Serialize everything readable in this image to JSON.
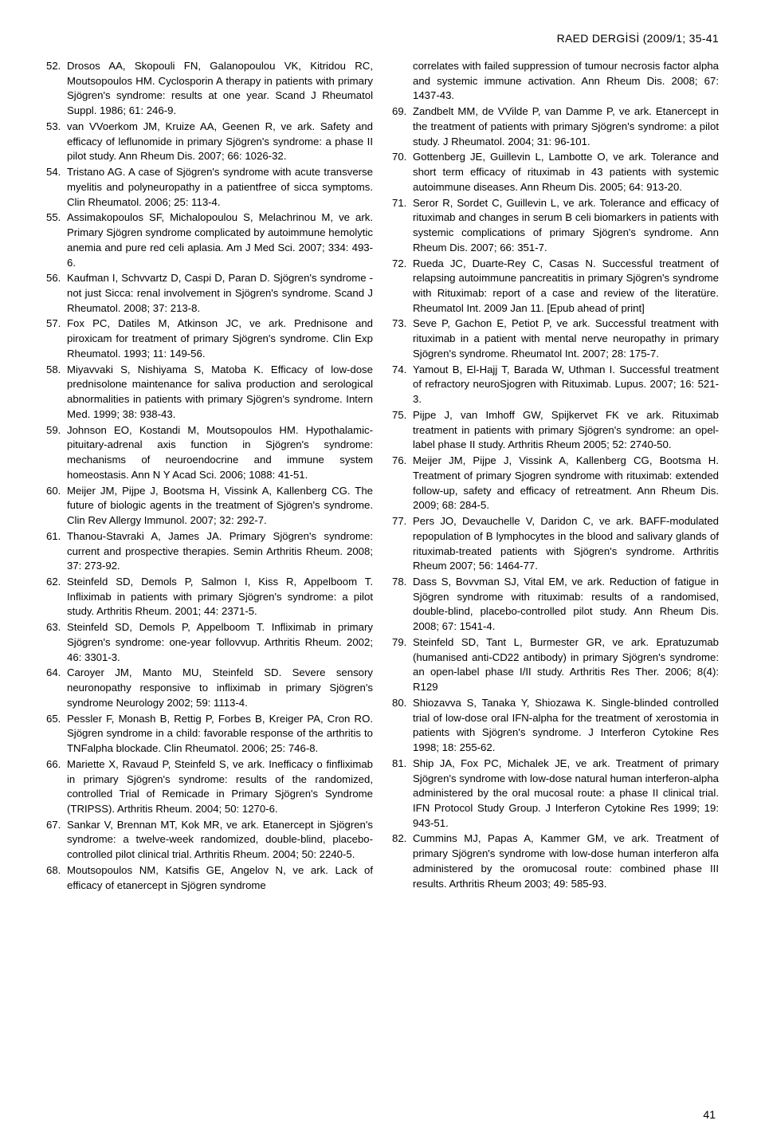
{
  "header": "RAED DERGİSİ (2009/1; 35-41",
  "page_number": "41",
  "left_refs": [
    {
      "num": "52.",
      "text": "Drosos AA, Skopouli FN, Galanopoulou VK, Kitridou RC, Moutsopoulos HM. Cyclosporin A therapy in patients with primary Sjögren's syndrome: results at one year. Scand J Rheumatol Suppl. 1986; 61: 246-9."
    },
    {
      "num": "53.",
      "text": "van VVoerkom JM, Kruize AA, Geenen R, ve ark. Safety and efficacy of leflunomide in primary Sjögren's syndrome: a phase II pilot study. Ann Rheum Dis. 2007; 66: 1026-32."
    },
    {
      "num": "54.",
      "text": "Tristano AG. A case of Sjögren's syndrome with acute transverse myelitis and polyneuropathy in a patientfree of sicca symptoms. Clin Rheumatol. 2006; 25: 113-4."
    },
    {
      "num": "55.",
      "text": "Assimakopoulos SF, Michalopoulou S, Melachrinou M, ve ark. Primary Sjögren syndrome complicated by autoimmune hemolytic anemia and pure red celi aplasia. Am J Med Sci. 2007; 334: 493-6."
    },
    {
      "num": "56.",
      "text": "Kaufman I, Schvvartz D, Caspi D, Paran D. Sjögren's syndrome - not just Sicca: renal involvement in Sjögren's syndrome. Scand J Rheumatol. 2008; 37: 213-8."
    },
    {
      "num": "57.",
      "text": "Fox PC, Datiles M, Atkinson JC, ve ark. Prednisone and piroxicam for treatment of primary Sjögren's syndrome. Clin Exp Rheumatol. 1993; 11: 149-56."
    },
    {
      "num": "58.",
      "text": "Miyavvaki S, Nishiyama S, Matoba K. Efficacy of low-dose prednisolone maintenance for saliva production and serological abnormalities in patients with primary Sjögren's syndrome. Intern Med. 1999; 38: 938-43."
    },
    {
      "num": "59.",
      "text": "Johnson EO, Kostandi M, Moutsopoulos HM. Hypothalamic-pituitary-adrenal axis function in Sjögren's syndrome: mechanisms of neuroendocrine and immune system homeostasis. Ann N Y Acad Sci. 2006; 1088: 41-51."
    },
    {
      "num": "60.",
      "text": "Meijer JM, Pijpe J, Bootsma H, Vissink A, Kallenberg CG. The future of biologic agents in the treatment of Sjögren's syndrome. Clin Rev Allergy Immunol. 2007; 32: 292-7."
    },
    {
      "num": "61.",
      "text": "Thanou-Stavraki A, James JA. Primary Sjögren's syndrome: current and prospective therapies. Semin Arthritis Rheum. 2008; 37: 273-92."
    },
    {
      "num": "62.",
      "text": "Steinfeld SD, Demols P, Salmon I, Kiss R, Appelboom T. Infliximab in patients with primary Sjögren's syndrome: a pilot study. Arthritis Rheum. 2001; 44: 2371-5."
    },
    {
      "num": "63.",
      "text": "Steinfeld SD, Demols P, Appelboom T. Infliximab in primary Sjögren's syndrome: one-year follovvup. Arthritis Rheum. 2002; 46: 3301-3."
    },
    {
      "num": "64.",
      "text": "Caroyer JM, Manto MU, Steinfeld SD. Severe sensory neuronopathy responsive to infliximab in primary Sjögren's syndrome Neurology 2002; 59: 1113-4."
    },
    {
      "num": "65.",
      "text": "Pessler F, Monash B, Rettig P, Forbes B, Kreiger PA, Cron RO. Sjögren syndrome in a child: favorable response of the arthritis to TNFalpha blockade. Clin Rheumatol. 2006; 25: 746-8."
    },
    {
      "num": "66.",
      "text": "Mariette X, Ravaud P, Steinfeld S, ve ark. Inefficacy o finfliximab in primary Sjögren's syndrome: results of the randomized, controlled Trial of Remicade in Primary Sjögren's Syndrome (TRIPSS). Arthritis Rheum. 2004; 50: 1270-6."
    },
    {
      "num": "67.",
      "text": "Sankar V, Brennan MT, Kok MR, ve ark. Etanercept in Sjögren's syndrome: a twelve-week randomized, double-blind, placebo-controlled pilot clinical trial. Arthritis Rheum. 2004; 50: 2240-5."
    },
    {
      "num": "68.",
      "text": "Moutsopoulos NM, Katsifis GE, Angelov N, ve ark. Lack of efficacy of etanercept in Sjögren syndrome"
    }
  ],
  "right_refs": [
    {
      "num": "",
      "text": "correlates with failed suppression of tumour necrosis factor alpha and systemic immune activation. Ann Rheum Dis. 2008; 67: 1437-43."
    },
    {
      "num": "69.",
      "text": "Zandbelt MM, de VVilde P, van Damme P, ve ark. Etanercept in the treatment of patients with primary Sjögren's syndrome: a pilot study. J Rheumatol. 2004; 31: 96-101."
    },
    {
      "num": "70.",
      "text": "Gottenberg JE, Guillevin L, Lambotte O, ve ark. Tolerance and short term efficacy of rituximab in 43 patients with systemic autoimmune diseases. Ann Rheum Dis. 2005; 64: 913-20."
    },
    {
      "num": "71.",
      "text": "Seror R, Sordet C, Guillevin L, ve ark. Tolerance and efficacy of rituximab and changes in serum B celi biomarkers in patients with systemic complications of primary Sjögren's syndrome. Ann Rheum Dis. 2007; 66: 351-7."
    },
    {
      "num": "72.",
      "text": "Rueda JC, Duarte-Rey C, Casas N. Successful treatment of relapsing autoimmune pancreatitis in primary Sjögren's syndrome with Rituximab: report of a case and review of the literatüre. Rheumatol Int. 2009 Jan 11. [Epub ahead of print]"
    },
    {
      "num": "73.",
      "text": "Seve P, Gachon E, Petiot P, ve ark. Successful treatment with rituximab in a patient with mental nerve neuropathy in primary Sjögren's syndrome. Rheumatol Int. 2007; 28: 175-7."
    },
    {
      "num": "74.",
      "text": "Yamout B, El-Hajj T, Barada W, Uthman I. Successful treatment of refractory neuroSjogren with Rituximab. Lupus. 2007; 16: 521-3."
    },
    {
      "num": "75.",
      "text": "Pijpe J, van Imhoff GW, Spijkervet FK ve ark. Rituximab treatment in patients with primary Sjögren's syndrome: an opel-label phase II study. Arthritis Rheum 2005; 52: 2740-50."
    },
    {
      "num": "76.",
      "text": "Meijer JM, Pijpe J, Vissink A, Kallenberg CG, Bootsma H. Treatment of primary Sjogren syndrome with rituximab: extended follow-up, safety and efficacy of retreatment. Ann Rheum Dis. 2009; 68: 284-5."
    },
    {
      "num": "77.",
      "text": "Pers JO, Devauchelle V, Daridon C, ve ark. BAFF-modulated repopulation of B lymphocytes in the blood and salivary glands of rituximab-treated patients with Sjögren's syndrome. Arthritis Rheum 2007; 56: 1464-77."
    },
    {
      "num": "78.",
      "text": "Dass S, Bovvman SJ, Vital EM, ve ark. Reduction of fatigue in Sjögren syndrome with rituximab: results of a randomised, double-blind, placebo-controlled pilot study. Ann Rheum Dis. 2008; 67: 1541-4."
    },
    {
      "num": "79.",
      "text": "Steinfeld SD, Tant L, Burmester GR, ve ark. Epratuzumab (humanised anti-CD22 antibody) in primary Sjögren's syndrome: an open-label phase I/II study. Arthritis Res Ther. 2006; 8(4): R129"
    },
    {
      "num": "80.",
      "text": "Shiozavva S, Tanaka Y, Shiozawa K. Single-blinded controlled trial of low-dose oral IFN-alpha for the treatment of xerostomia in patients with Sjögren's syndrome. J Interferon Cytokine Res 1998; 18: 255-62."
    },
    {
      "num": "81.",
      "text": "Ship JA, Fox PC, Michalek JE, ve ark. Treatment of primary Sjögren's syndrome with low-dose natural human interferon-alpha administered by the oral mucosal route: a phase II clinical trial. IFN Protocol Study Group. J Interferon Cytokine Res 1999; 19: 943-51."
    },
    {
      "num": "82.",
      "text": "Cummins MJ, Papas A, Kammer GM, ve ark. Treatment of primary Sjögren's syndrome with low-dose human interferon alfa administered by the oromucosal route: combined phase III results. Arthritis Rheum 2003; 49: 585-93."
    }
  ]
}
